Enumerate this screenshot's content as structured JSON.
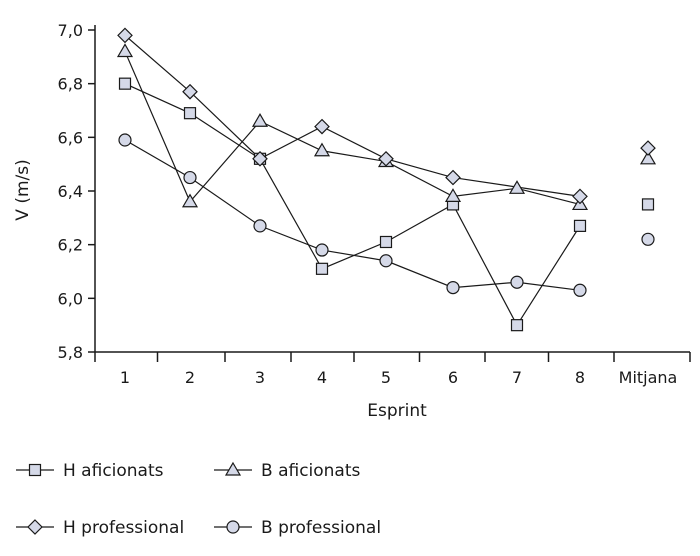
{
  "chart_data": {
    "type": "line",
    "categories": [
      "1",
      "2",
      "3",
      "4",
      "5",
      "6",
      "7",
      "8",
      "Mitjana"
    ],
    "xlabel": "Esprint",
    "ylabel": "V (m/s)",
    "ylim": [
      5.8,
      7.0
    ],
    "yticks": [
      "5,8",
      "6,0",
      "6,2",
      "6,4",
      "6,6",
      "6,8",
      "7,0"
    ],
    "grid": false,
    "legend_position": "bottom",
    "series": [
      {
        "name": "H aficionats",
        "marker": "square",
        "values": [
          6.8,
          6.69,
          6.52,
          6.11,
          6.21,
          6.35,
          5.9,
          6.27,
          6.35
        ]
      },
      {
        "name": "B aficionats",
        "marker": "triangle",
        "values": [
          6.92,
          6.36,
          6.66,
          6.55,
          6.51,
          6.38,
          6.41,
          6.35,
          6.52
        ]
      },
      {
        "name": "H professional",
        "marker": "diamond",
        "values": [
          6.98,
          6.77,
          6.52,
          6.64,
          6.52,
          6.45,
          null,
          6.38,
          6.56
        ]
      },
      {
        "name": "B professional",
        "marker": "circle",
        "values": [
          6.59,
          6.45,
          6.27,
          6.18,
          6.14,
          6.04,
          6.06,
          6.03,
          6.22
        ]
      }
    ],
    "colors": {
      "marker_fill": "#d5d9e8",
      "line": "#1a1a1a"
    }
  }
}
